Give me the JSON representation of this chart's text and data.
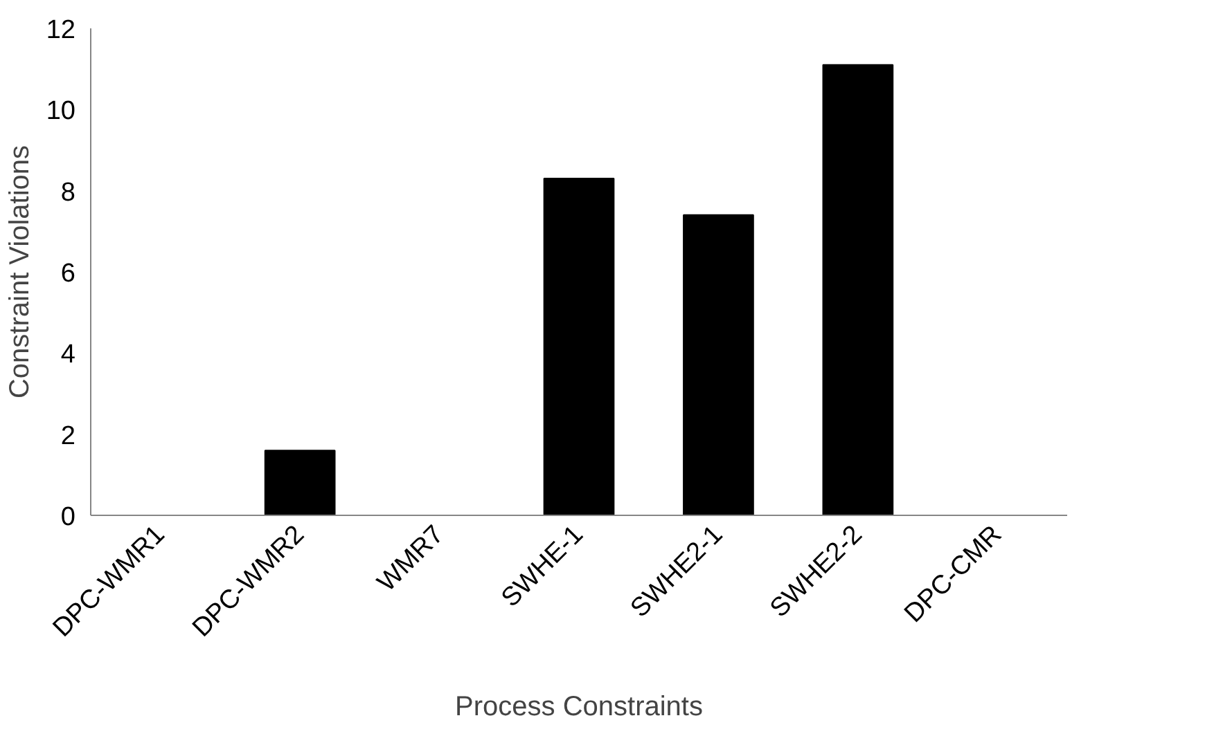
{
  "chart_data": {
    "type": "bar",
    "xlabel": "Process Constraints",
    "ylabel": "Constraint Violations",
    "categories": [
      "DPC-WMR1",
      "DPC-WMR2",
      "WMR7",
      "SWHE-1",
      "SWHE2-1",
      "SWHE2-2",
      "DPC-CMR"
    ],
    "values": [
      0,
      1.6,
      0,
      8.3,
      7.4,
      11.1,
      0
    ],
    "color": "#000000",
    "ylim": [
      0,
      12
    ],
    "yticks": [
      0,
      2,
      4,
      6,
      8,
      10,
      12
    ],
    "grid": false
  }
}
